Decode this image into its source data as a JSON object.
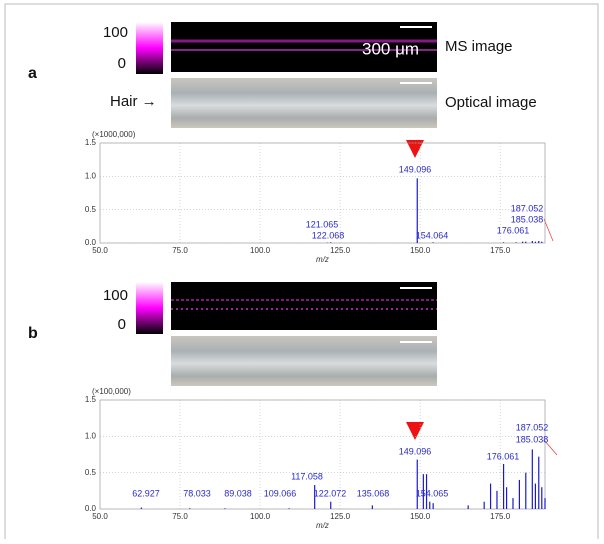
{
  "panels": [
    {
      "label": "a",
      "colorbar_ticks": [
        100,
        0
      ],
      "scale_bar": "300 μm",
      "ms_caption": "MS image",
      "hair_label": "Hair →",
      "optical_caption": "Optical image"
    },
    {
      "label": "b",
      "colorbar_ticks": [
        100,
        0
      ]
    }
  ],
  "chart_data": [
    {
      "type": "bar",
      "multiplier": "(×1000,000)",
      "xlabel": "m/z",
      "color": "#1a1acc",
      "grid": true,
      "xlim": [
        50,
        189
      ],
      "ylim": [
        0,
        1.5
      ],
      "xticks": [
        {
          "value": 50,
          "label": "50.0"
        },
        {
          "value": 75,
          "label": "75.0"
        },
        {
          "value": 100,
          "label": "100.0"
        },
        {
          "value": 125,
          "label": "125.0"
        },
        {
          "value": 150,
          "label": "150.0"
        },
        {
          "value": 175,
          "label": "175.0"
        }
      ],
      "yticks": [
        {
          "value": 0,
          "label": "0.0"
        },
        {
          "value": 0.5,
          "label": "0.5"
        },
        {
          "value": 1,
          "label": "1.0"
        },
        {
          "value": 1.5,
          "label": "1.5"
        }
      ],
      "x": [
        121.065,
        122.068,
        149.096,
        154.064,
        176.061,
        180,
        182,
        183,
        185.038,
        186,
        187.052,
        188
      ],
      "values": [
        0.005,
        0.01,
        0.97,
        0.01,
        0.01,
        0.01,
        0.02,
        0.02,
        0.03,
        0.02,
        0.03,
        0.02
      ],
      "peak_labels": [
        "121.065",
        "122.068",
        "149.096",
        "154.064",
        "176.061",
        null,
        null,
        null,
        "185.038",
        null,
        "187.052",
        null
      ]
    },
    {
      "type": "bar",
      "multiplier": "(×100,000)",
      "xlabel": "m/z",
      "color": "#1a1acc",
      "grid": true,
      "xlim": [
        50,
        189
      ],
      "ylim": [
        0,
        1.5
      ],
      "xticks": [
        {
          "value": 50,
          "label": "50.0"
        },
        {
          "value": 75,
          "label": "75.0"
        },
        {
          "value": 100,
          "label": "100.0"
        },
        {
          "value": 125,
          "label": "125.0"
        },
        {
          "value": 150,
          "label": "150.0"
        },
        {
          "value": 175,
          "label": "175.0"
        }
      ],
      "yticks": [
        {
          "value": 0,
          "label": "0.0"
        },
        {
          "value": 0.5,
          "label": "0.5"
        },
        {
          "value": 1,
          "label": "1.0"
        },
        {
          "value": 1.5,
          "label": "1.5"
        }
      ],
      "x": [
        62.927,
        78.033,
        89.038,
        109.066,
        117.058,
        122.072,
        135.068,
        149.096,
        151,
        152,
        153,
        154.065,
        165,
        170,
        172,
        174,
        176.061,
        177,
        179,
        181,
        183,
        185.038,
        186,
        187.052,
        188,
        189
      ],
      "values": [
        0.02,
        0.01,
        0.01,
        0.01,
        0.33,
        0.1,
        0.05,
        0.68,
        0.48,
        0.48,
        0.1,
        0.08,
        0.05,
        0.1,
        0.35,
        0.25,
        0.62,
        0.3,
        0.15,
        0.4,
        0.5,
        0.82,
        0.35,
        0.72,
        0.3,
        0.15
      ],
      "peak_labels": [
        "62.927",
        "78.033",
        "89.038",
        "109.066",
        "117.058",
        "122.072",
        "135.068",
        "149.096",
        null,
        null,
        null,
        "154.065",
        null,
        null,
        null,
        null,
        "176.061",
        null,
        null,
        null,
        null,
        "185.038",
        null,
        "187.052",
        null,
        null
      ]
    }
  ]
}
